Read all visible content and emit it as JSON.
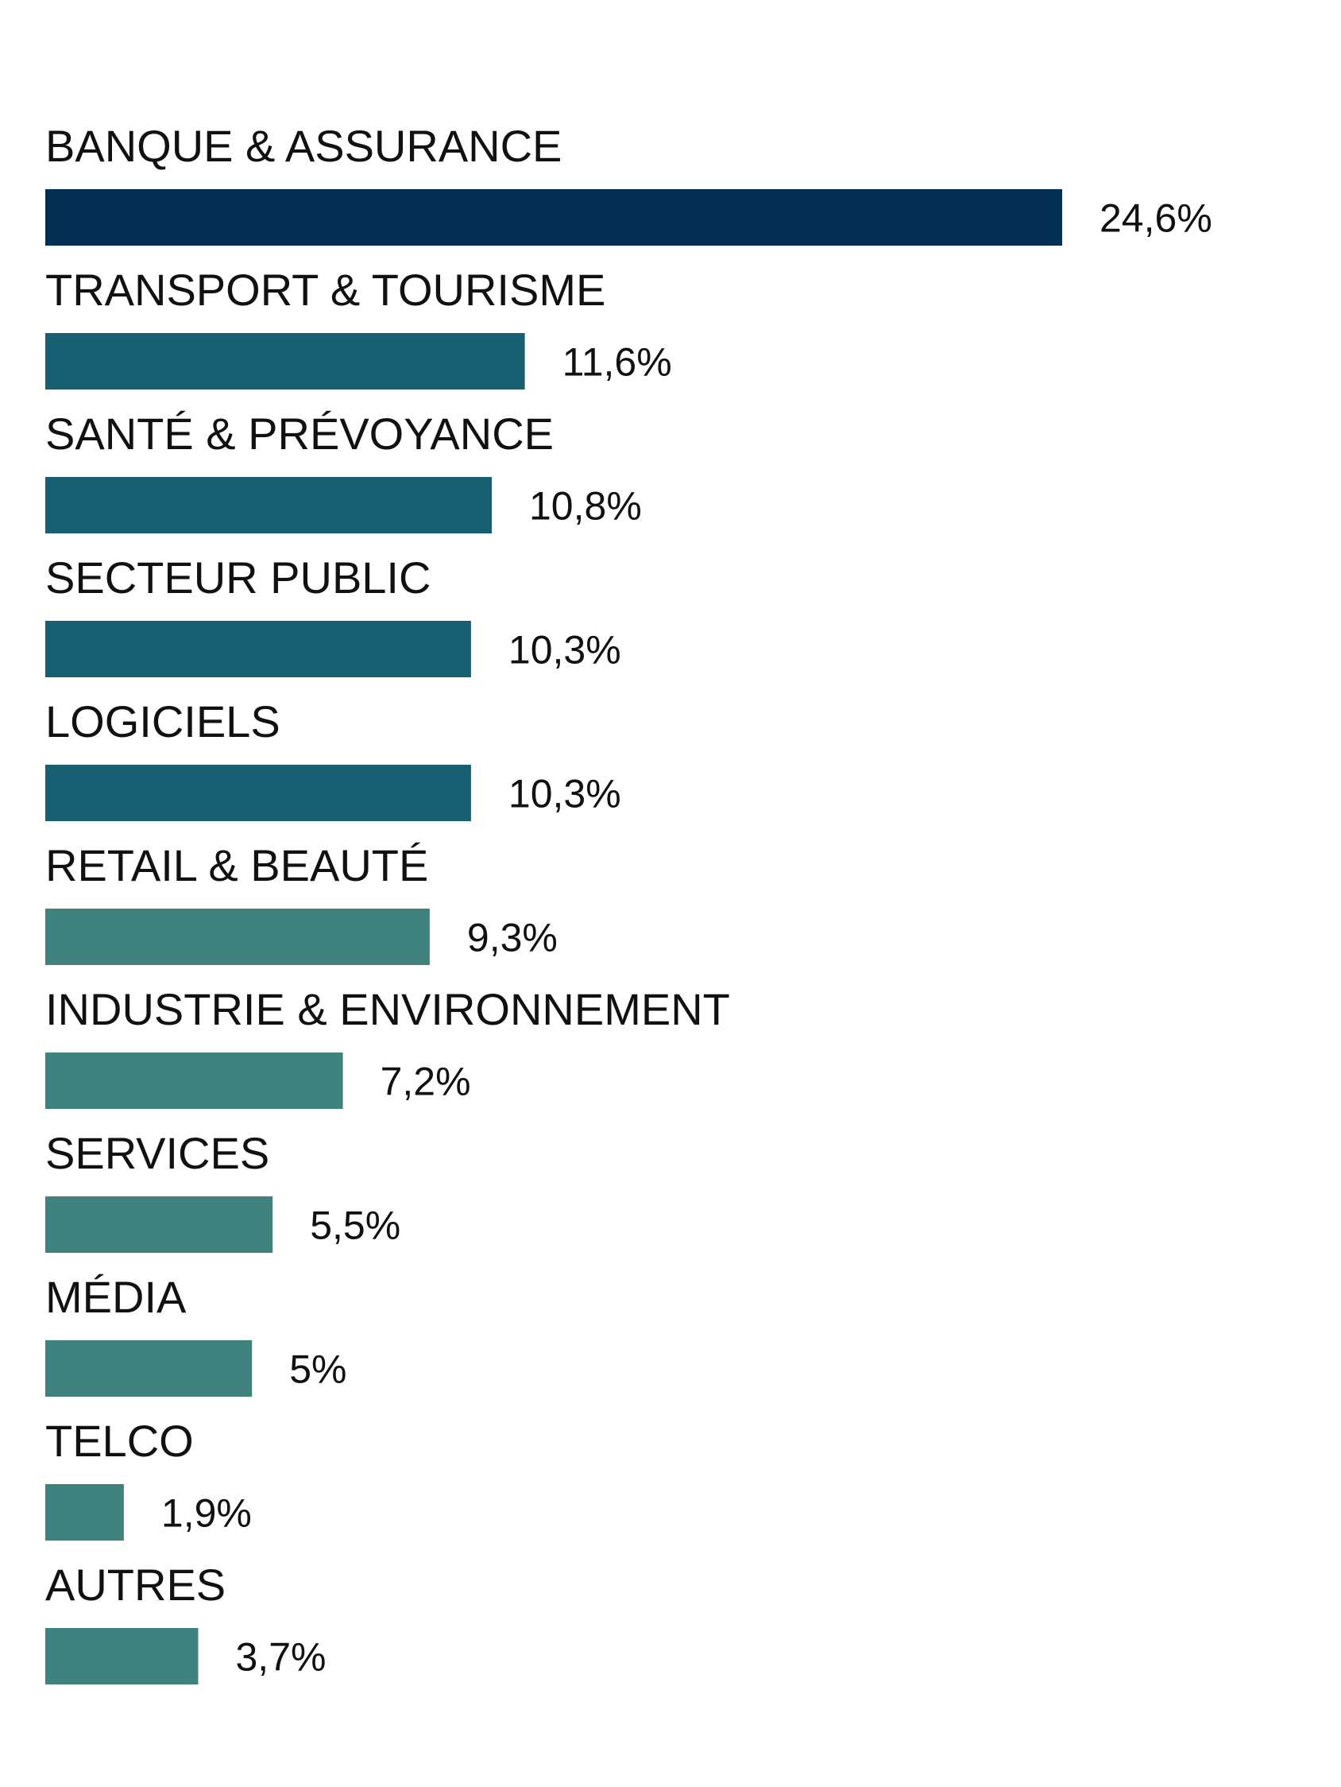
{
  "chart_data": {
    "type": "bar",
    "orientation": "horizontal",
    "categories": [
      "BANQUE & ASSURANCE",
      "TRANSPORT & TOURISME",
      "SANTÉ & PRÉVOYANCE",
      "SECTEUR PUBLIC",
      "LOGICIELS",
      "RETAIL & BEAUTÉ",
      "INDUSTRIE & ENVIRONNEMENT",
      "SERVICES",
      "MÉDIA",
      "TELCO",
      "AUTRES"
    ],
    "values": [
      24.6,
      11.6,
      10.8,
      10.3,
      10.3,
      9.3,
      7.2,
      5.5,
      5.0,
      1.9,
      3.7
    ],
    "value_labels": [
      "24,6%",
      "11,6%",
      "10,8%",
      "10,3%",
      "10,3%",
      "9,3%",
      "7,2%",
      "5,5%",
      "5%",
      "1,9%",
      "3,7%"
    ],
    "bar_colors": [
      "#042f53",
      "#175f71",
      "#175f71",
      "#175f71",
      "#175f71",
      "#40827e",
      "#40827e",
      "#40827e",
      "#40827e",
      "#40827e",
      "#40827e"
    ],
    "grid": false,
    "legend": "none"
  }
}
